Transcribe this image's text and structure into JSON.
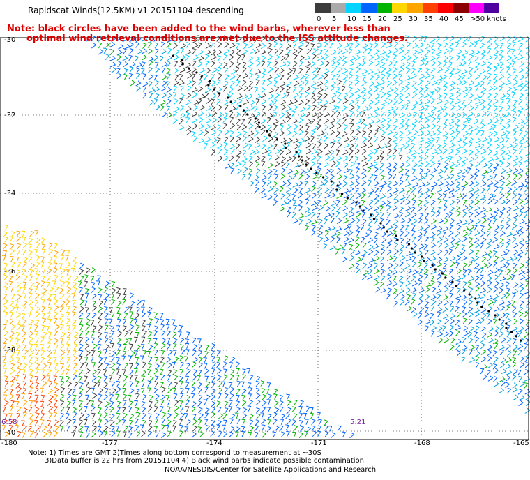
{
  "title": "Rapidscat Winds(12.5KM) v1 20151104 descending",
  "note_line1": "Note: black circles have been added to the wind barbs, wherever less than",
  "note_line2": "optimal wind retrieval conditions are met due to the ISS attitude changes.",
  "colorbar": {
    "ticks": [
      "0",
      "5",
      "10",
      "15",
      "20",
      "25",
      "30",
      "35",
      "40",
      "45",
      ">50 knots"
    ],
    "colors": [
      "#3c3c3c",
      "#aaaaaa",
      "#00d4ff",
      "#0064ff",
      "#00b400",
      "#ffd700",
      "#ffa500",
      "#ff4000",
      "#ff0000",
      "#8b0000",
      "#ff00ff",
      "#5000a0"
    ]
  },
  "lat_labels": [
    "-30",
    "-32",
    "-34",
    "-36",
    "-38",
    "-40"
  ],
  "lon_labels": [
    "-180",
    "-177",
    "-174",
    "-171",
    "-168",
    "-165"
  ],
  "times": [
    "6:58",
    "5:21"
  ],
  "footer": {
    "line1": "Note: 1) Times are GMT 2)Times along bottom correspond to measurement at ~30S",
    "line2": "3)Data buffer is 22 hrs from 20151104 4) Black wind barbs indicate possible contamination",
    "line3": "NOAA/NESDIS/Center for Satellite Applications and Research"
  }
}
